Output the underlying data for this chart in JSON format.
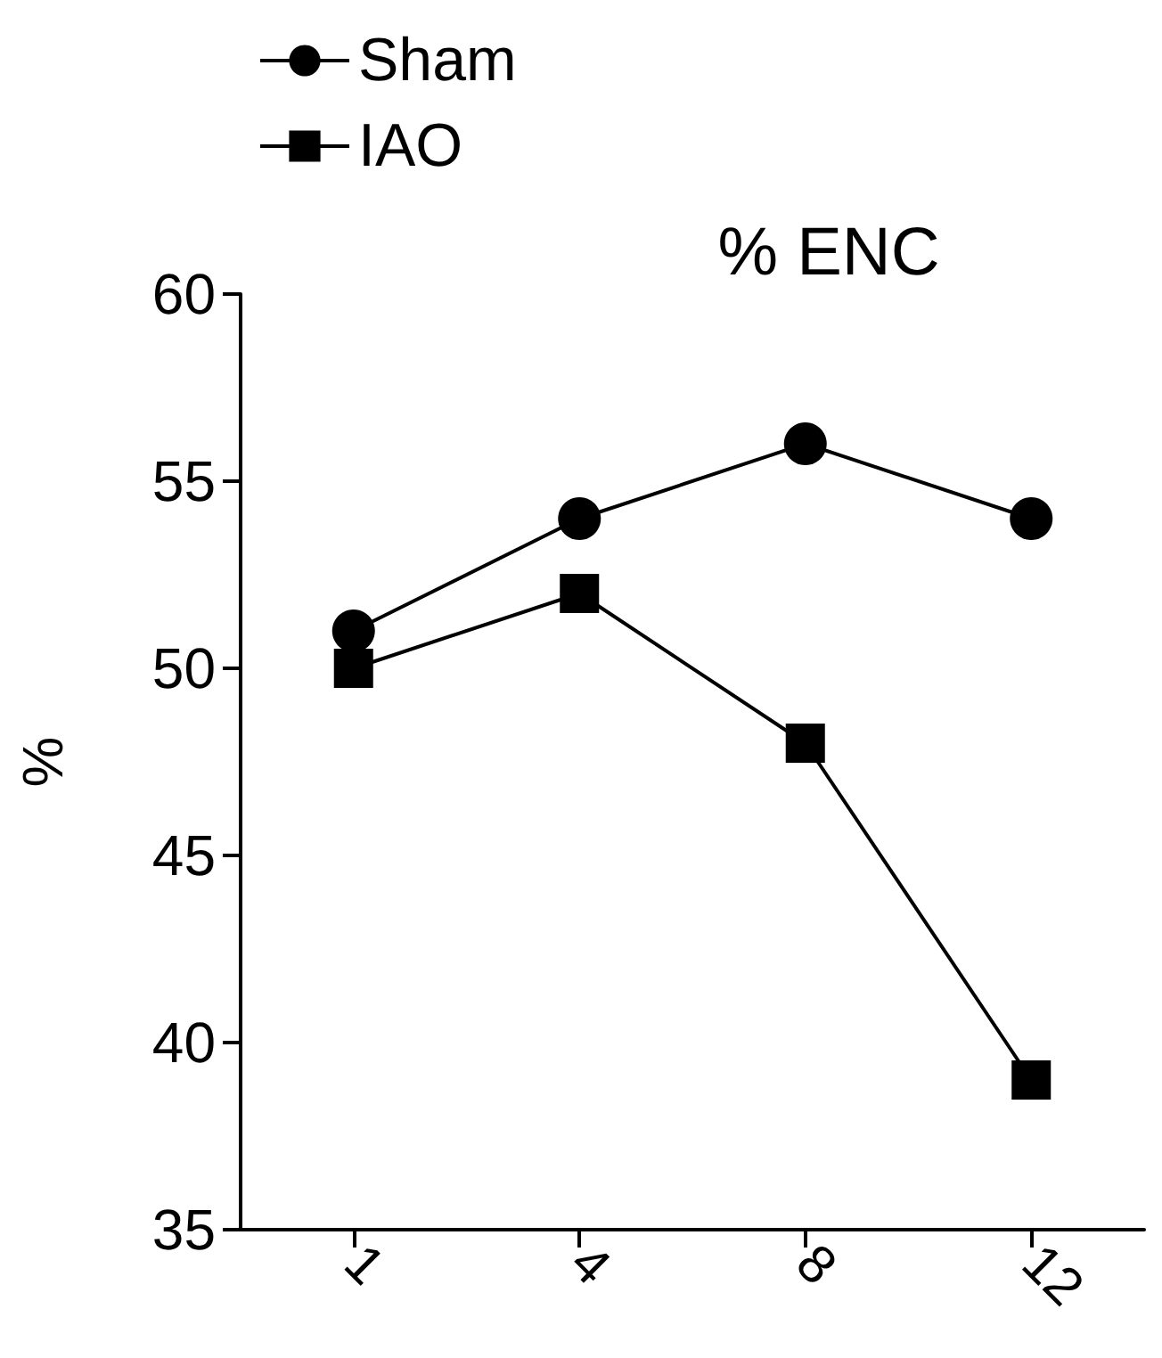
{
  "chart_data": {
    "type": "line",
    "title": "% ENC",
    "ylabel": "%",
    "categories": [
      "1",
      "4",
      "8",
      "12"
    ],
    "series": [
      {
        "name": "Sham",
        "color": "#000000",
        "marker": "circle",
        "values": [
          51,
          54,
          56,
          54
        ]
      },
      {
        "name": "IAO",
        "color": "#000000",
        "marker": "square",
        "values": [
          50,
          52,
          48,
          39
        ]
      }
    ],
    "ylim": [
      35,
      60
    ],
    "yticks": [
      35,
      40,
      45,
      50,
      55,
      60
    ],
    "grid": false,
    "legend": "top left",
    "line_style": "solid"
  }
}
